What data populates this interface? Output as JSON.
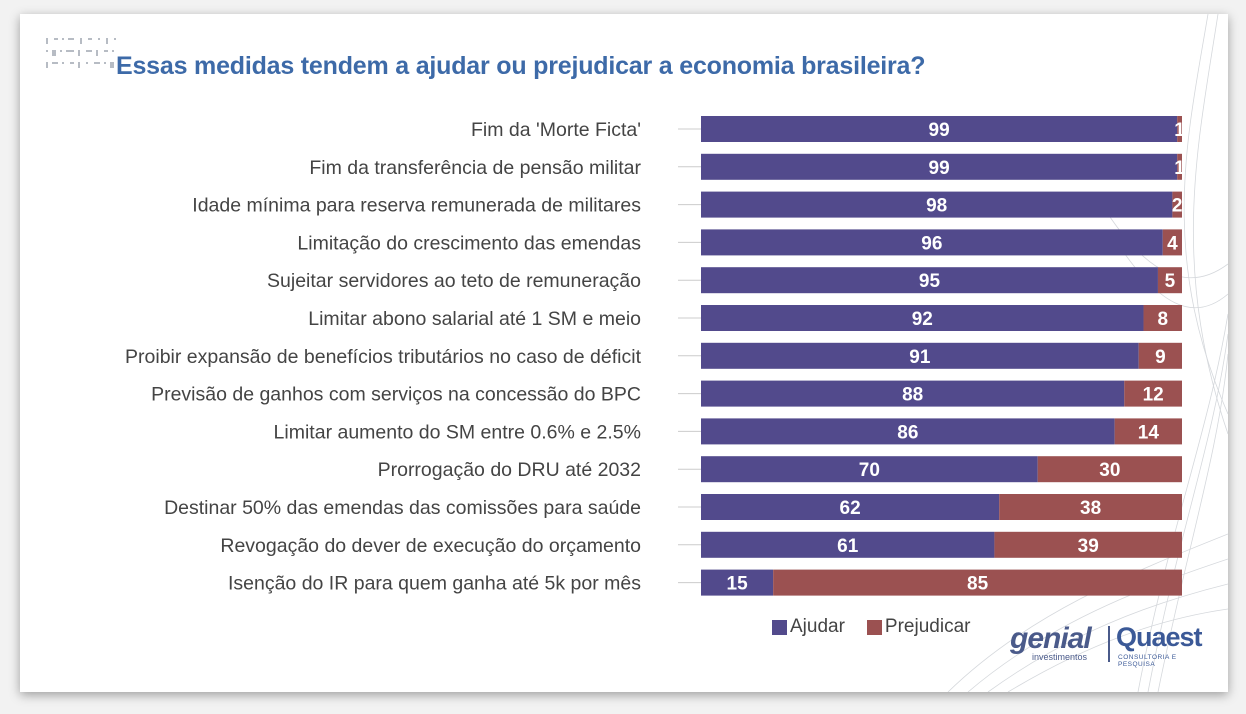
{
  "title": "Essas medidas tendem a ajudar ou prejudicar a economia brasileira?",
  "colors": {
    "ajudar": "#524a8c",
    "prejudicar": "#9b5151",
    "title": "#3d6aa8"
  },
  "legend": {
    "ajudar": "Ajudar",
    "prejudicar": "Prejudicar"
  },
  "logos": {
    "genial": "genial",
    "genial_sub": "investimentos",
    "quaest": "Quaest",
    "quaest_sub": "CONSULTORIA E PESQUISA"
  },
  "chart_data": {
    "type": "bar",
    "orientation": "horizontal",
    "stacked": true,
    "title": "Essas medidas tendem a ajudar ou prejudicar a economia brasileira?",
    "xlim": [
      0,
      100
    ],
    "categories": [
      "Fim da 'Morte Ficta'",
      "Fim da transferência de pensão militar",
      "Idade mínima para reserva remunerada de militares",
      "Limitação do crescimento das emendas",
      "Sujeitar servidores ao teto de remuneração",
      "Limitar abono salarial até 1 SM e meio",
      "Proibir expansão de benefícios tributários no caso de déficit",
      "Previsão de ganhos com serviços na concessão do BPC",
      "Limitar aumento do SM entre 0.6% e 2.5%",
      "Prorrogação do DRU até 2032",
      "Destinar 50% das emendas das comissões para saúde",
      "Revogação do dever de execução do orçamento",
      "Isenção do IR para quem ganha até 5k por mês"
    ],
    "series": [
      {
        "name": "Ajudar",
        "values": [
          99,
          99,
          98,
          96,
          95,
          92,
          91,
          88,
          86,
          70,
          62,
          61,
          15
        ]
      },
      {
        "name": "Prejudicar",
        "values": [
          1,
          1,
          2,
          4,
          5,
          8,
          9,
          12,
          14,
          30,
          38,
          39,
          85
        ]
      }
    ],
    "legend": "bottom-right"
  }
}
